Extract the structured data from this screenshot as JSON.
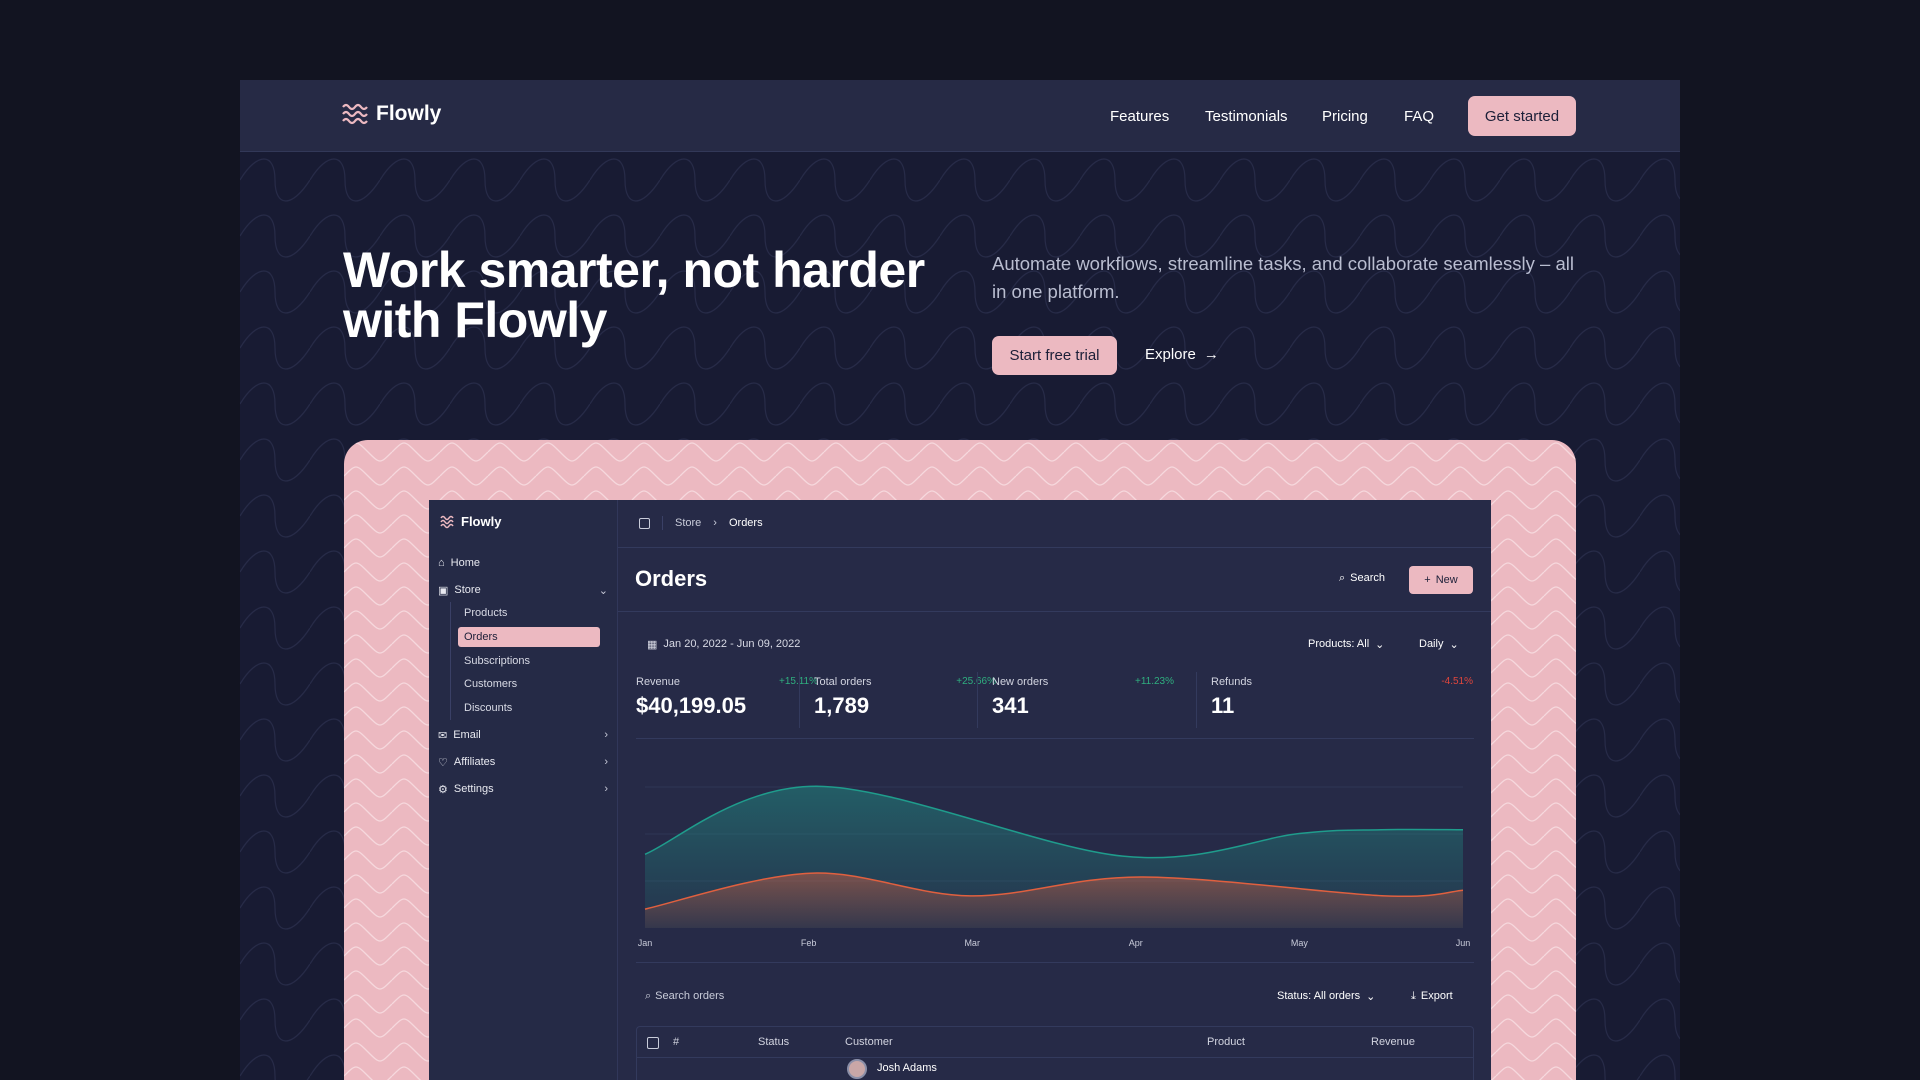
{
  "site": {
    "brand": "Flowly",
    "nav": [
      "Features",
      "Testimonials",
      "Pricing",
      "FAQ"
    ],
    "cta": "Get started"
  },
  "hero": {
    "title_line1": "Work smarter, not harder",
    "title_line2": "with Flowly",
    "subtitle": "Automate workflows, streamline tasks, and collaborate seamlessly – all in one platform.",
    "primary": "Start free trial",
    "secondary": "Explore"
  },
  "colors": {
    "accent": "#ecb9c1",
    "teal": "#1f9c8c",
    "orange": "#e0603f",
    "positive": "#2fae7f",
    "negative": "#e0463c"
  },
  "app": {
    "brand": "Flowly",
    "sidebar": {
      "home": "Home",
      "store": "Store",
      "store_items": [
        "Products",
        "Orders",
        "Subscriptions",
        "Customers",
        "Discounts"
      ],
      "active": "Orders",
      "email": "Email",
      "affiliates": "Affiliates",
      "settings": "Settings"
    },
    "breadcrumb": [
      "Store",
      "Orders"
    ],
    "page_title": "Orders",
    "search": "Search",
    "new": "New",
    "date_range": "Jan 20, 2022 - Jun 09, 2022",
    "products_filter": "Products: All",
    "interval": "Daily",
    "stats": [
      {
        "label": "Revenue",
        "value": "$40,199.05",
        "change": "+15.11%",
        "trend": "up"
      },
      {
        "label": "Total orders",
        "value": "1,789",
        "change": "+25.66%",
        "trend": "up"
      },
      {
        "label": "New orders",
        "value": "341",
        "change": "+11.23%",
        "trend": "up"
      },
      {
        "label": "Refunds",
        "value": "11",
        "change": "-4.51%",
        "trend": "down"
      }
    ],
    "table": {
      "search_placeholder": "Search orders",
      "status_filter": "Status: All orders",
      "export": "Export",
      "columns": [
        "#",
        "Status",
        "Customer",
        "Product",
        "Revenue"
      ],
      "rows": [
        {
          "customer": "Josh Adams"
        }
      ]
    }
  },
  "chart_data": {
    "type": "area",
    "x_labels": [
      "Jan",
      "Feb",
      "Mar",
      "Apr",
      "May",
      "Jun"
    ],
    "grid": true,
    "ylim": [
      0,
      100
    ],
    "series": [
      {
        "color": "#1f9c8c",
        "points": [
          [
            0,
            39
          ],
          [
            1.05,
            75
          ],
          [
            2.92,
            38
          ],
          [
            4.0,
            50
          ],
          [
            4.5,
            52
          ],
          [
            5,
            52
          ]
        ]
      },
      {
        "color": "#e0603f",
        "points": [
          [
            0,
            10
          ],
          [
            1.01,
            29
          ],
          [
            1.99,
            17
          ],
          [
            3.03,
            27
          ],
          [
            4.52,
            17
          ],
          [
            5,
            20
          ]
        ]
      }
    ]
  }
}
